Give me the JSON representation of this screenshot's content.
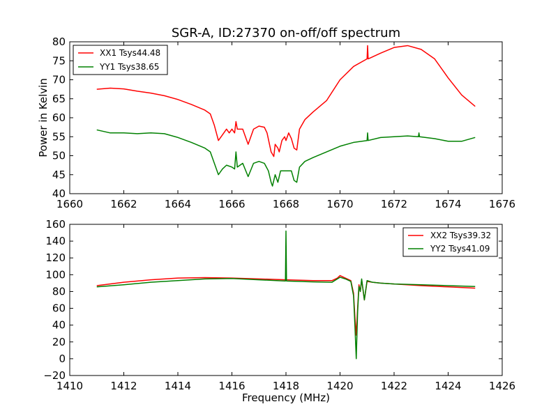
{
  "colors": {
    "red": "#ff0000",
    "green": "#008000",
    "frame": "#000000",
    "background": "#ffffff"
  },
  "chart_data": [
    {
      "type": "line",
      "title": "SGR-A, ID:27370 on-off/off spectrum",
      "xlabel": "",
      "ylabel": "Power in Kelvin",
      "xlim": [
        1660,
        1676
      ],
      "ylim": [
        40,
        80
      ],
      "xticks": [
        1660,
        1662,
        1664,
        1666,
        1668,
        1670,
        1672,
        1674,
        1676
      ],
      "yticks": [
        40,
        45,
        50,
        55,
        60,
        65,
        70,
        75,
        80
      ],
      "grid": false,
      "legend_position": "top-left",
      "series": [
        {
          "name": "XX1 Tsys44.48",
          "color": "#ff0000",
          "points": [
            [
              1661.0,
              67.5
            ],
            [
              1661.5,
              67.8
            ],
            [
              1662.0,
              67.6
            ],
            [
              1662.5,
              67.0
            ],
            [
              1663.0,
              66.5
            ],
            [
              1663.5,
              65.8
            ],
            [
              1664.0,
              64.8
            ],
            [
              1664.5,
              63.5
            ],
            [
              1665.0,
              62.0
            ],
            [
              1665.2,
              61.0
            ],
            [
              1665.35,
              58.0
            ],
            [
              1665.5,
              54.0
            ],
            [
              1665.65,
              55.5
            ],
            [
              1665.8,
              57.0
            ],
            [
              1665.9,
              56.0
            ],
            [
              1666.0,
              57.0
            ],
            [
              1666.1,
              56.0
            ],
            [
              1666.15,
              59.0
            ],
            [
              1666.2,
              57.0
            ],
            [
              1666.4,
              57.0
            ],
            [
              1666.6,
              53.0
            ],
            [
              1666.8,
              57.0
            ],
            [
              1667.0,
              57.8
            ],
            [
              1667.2,
              57.5
            ],
            [
              1667.3,
              56.0
            ],
            [
              1667.45,
              51.0
            ],
            [
              1667.55,
              49.8
            ],
            [
              1667.6,
              53.0
            ],
            [
              1667.7,
              52.0
            ],
            [
              1667.75,
              51.0
            ],
            [
              1667.85,
              54.0
            ],
            [
              1667.95,
              55.0
            ],
            [
              1668.0,
              54.0
            ],
            [
              1668.1,
              56.0
            ],
            [
              1668.2,
              54.5
            ],
            [
              1668.3,
              52.0
            ],
            [
              1668.4,
              51.5
            ],
            [
              1668.5,
              57.0
            ],
            [
              1668.7,
              59.5
            ],
            [
              1669.0,
              61.5
            ],
            [
              1669.5,
              64.5
            ],
            [
              1670.0,
              70.0
            ],
            [
              1670.5,
              73.5
            ],
            [
              1671.0,
              75.5
            ],
            [
              1671.02,
              79.0
            ],
            [
              1671.04,
              75.5
            ],
            [
              1671.5,
              77.0
            ],
            [
              1672.0,
              78.5
            ],
            [
              1672.5,
              79.0
            ],
            [
              1673.0,
              78.0
            ],
            [
              1673.5,
              75.5
            ],
            [
              1674.0,
              70.5
            ],
            [
              1674.5,
              66.0
            ],
            [
              1675.0,
              63.0
            ]
          ]
        },
        {
          "name": "YY1 Tsys38.65",
          "color": "#008000",
          "points": [
            [
              1661.0,
              56.8
            ],
            [
              1661.5,
              56.0
            ],
            [
              1662.0,
              56.0
            ],
            [
              1662.5,
              55.8
            ],
            [
              1663.0,
              56.0
            ],
            [
              1663.5,
              55.8
            ],
            [
              1664.0,
              54.8
            ],
            [
              1664.5,
              53.5
            ],
            [
              1665.0,
              52.0
            ],
            [
              1665.2,
              51.0
            ],
            [
              1665.35,
              48.0
            ],
            [
              1665.5,
              45.0
            ],
            [
              1665.65,
              46.5
            ],
            [
              1665.8,
              47.5
            ],
            [
              1666.0,
              47.0
            ],
            [
              1666.1,
              46.5
            ],
            [
              1666.15,
              51.0
            ],
            [
              1666.2,
              47.0
            ],
            [
              1666.4,
              48.0
            ],
            [
              1666.6,
              44.5
            ],
            [
              1666.8,
              48.0
            ],
            [
              1667.0,
              48.5
            ],
            [
              1667.2,
              48.0
            ],
            [
              1667.35,
              46.0
            ],
            [
              1667.45,
              43.0
            ],
            [
              1667.5,
              42.0
            ],
            [
              1667.6,
              45.0
            ],
            [
              1667.7,
              43.0
            ],
            [
              1667.8,
              46.0
            ],
            [
              1668.0,
              46.0
            ],
            [
              1668.1,
              46.0
            ],
            [
              1668.2,
              46.0
            ],
            [
              1668.3,
              43.5
            ],
            [
              1668.4,
              43.0
            ],
            [
              1668.5,
              47.0
            ],
            [
              1668.7,
              48.5
            ],
            [
              1669.0,
              49.5
            ],
            [
              1669.5,
              51.0
            ],
            [
              1670.0,
              52.5
            ],
            [
              1670.5,
              53.5
            ],
            [
              1671.0,
              54.0
            ],
            [
              1671.02,
              56.0
            ],
            [
              1671.04,
              54.0
            ],
            [
              1671.5,
              54.8
            ],
            [
              1672.0,
              55.0
            ],
            [
              1672.5,
              55.2
            ],
            [
              1672.9,
              55.0
            ],
            [
              1672.92,
              56.0
            ],
            [
              1672.94,
              55.0
            ],
            [
              1673.5,
              54.5
            ],
            [
              1674.0,
              53.8
            ],
            [
              1674.5,
              53.8
            ],
            [
              1675.0,
              54.8
            ]
          ]
        }
      ]
    },
    {
      "type": "line",
      "title": "",
      "xlabel": "Frequency (MHz)",
      "ylabel": "",
      "xlim": [
        1410,
        1426
      ],
      "ylim": [
        -20,
        160
      ],
      "xticks": [
        1410,
        1412,
        1414,
        1416,
        1418,
        1420,
        1422,
        1424,
        1426
      ],
      "yticks": [
        -20,
        0,
        20,
        40,
        60,
        80,
        100,
        120,
        140,
        160
      ],
      "grid": false,
      "legend_position": "top-right",
      "series": [
        {
          "name": "XX2 Tsys39.32",
          "color": "#ff0000",
          "points": [
            [
              1411.0,
              87
            ],
            [
              1412.0,
              91
            ],
            [
              1413.0,
              94
            ],
            [
              1414.0,
              96
            ],
            [
              1415.0,
              96.5
            ],
            [
              1416.0,
              96
            ],
            [
              1417.0,
              95
            ],
            [
              1418.0,
              94
            ],
            [
              1419.0,
              93
            ],
            [
              1419.7,
              93
            ],
            [
              1419.9,
              96
            ],
            [
              1420.0,
              99
            ],
            [
              1420.2,
              96
            ],
            [
              1420.4,
              93
            ],
            [
              1420.5,
              78
            ],
            [
              1420.55,
              50
            ],
            [
              1420.6,
              28
            ],
            [
              1420.65,
              60
            ],
            [
              1420.7,
              88
            ],
            [
              1420.75,
              80
            ],
            [
              1420.8,
              94
            ],
            [
              1420.9,
              70
            ],
            [
              1421.0,
              92
            ],
            [
              1421.2,
              91
            ],
            [
              1421.5,
              90
            ],
            [
              1422.0,
              89
            ],
            [
              1423.0,
              87
            ],
            [
              1424.0,
              85.5
            ],
            [
              1425.0,
              84
            ]
          ]
        },
        {
          "name": "YY2 Tsys41.09",
          "color": "#008000",
          "points": [
            [
              1411.0,
              85.5
            ],
            [
              1412.0,
              88
            ],
            [
              1413.0,
              91
            ],
            [
              1414.0,
              93
            ],
            [
              1415.0,
              95
            ],
            [
              1416.0,
              95.5
            ],
            [
              1417.0,
              94
            ],
            [
              1417.98,
              92.5
            ],
            [
              1418.0,
              152
            ],
            [
              1418.02,
              92.5
            ],
            [
              1419.0,
              91.5
            ],
            [
              1419.7,
              91
            ],
            [
              1419.9,
              95
            ],
            [
              1420.0,
              97
            ],
            [
              1420.2,
              95
            ],
            [
              1420.4,
              92
            ],
            [
              1420.5,
              75
            ],
            [
              1420.55,
              40
            ],
            [
              1420.6,
              0
            ],
            [
              1420.65,
              55
            ],
            [
              1420.7,
              86
            ],
            [
              1420.75,
              80
            ],
            [
              1420.8,
              95
            ],
            [
              1420.9,
              70
            ],
            [
              1421.0,
              93
            ],
            [
              1421.2,
              91
            ],
            [
              1421.5,
              90
            ],
            [
              1422.0,
              89
            ],
            [
              1423.0,
              88
            ],
            [
              1424.0,
              87
            ],
            [
              1425.0,
              86
            ]
          ]
        }
      ]
    }
  ]
}
